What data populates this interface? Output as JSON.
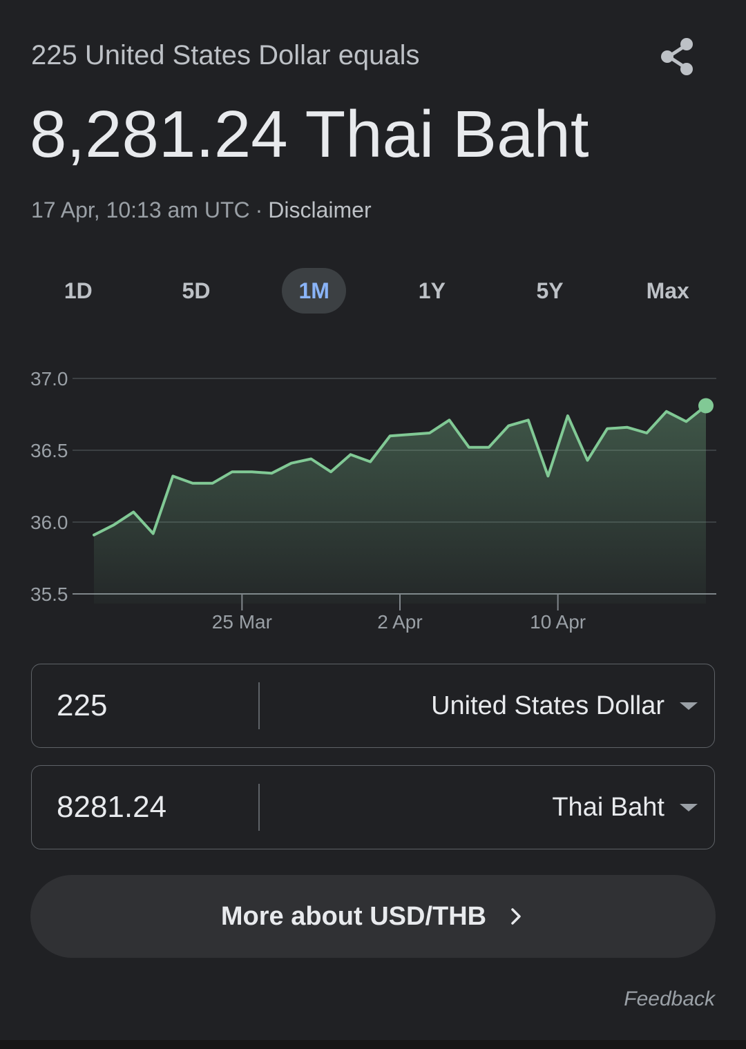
{
  "header": {
    "subtitle": "225 United States Dollar equals",
    "headline": "8,281.24 Thai Baht",
    "timestamp": "17 Apr, 10:13 am UTC",
    "separator": "·",
    "disclaimer": "Disclaimer",
    "share_icon": "share-icon"
  },
  "tabs": [
    {
      "label": "1D",
      "active": false
    },
    {
      "label": "5D",
      "active": false
    },
    {
      "label": "1M",
      "active": true
    },
    {
      "label": "1Y",
      "active": false
    },
    {
      "label": "5Y",
      "active": false
    },
    {
      "label": "Max",
      "active": false
    }
  ],
  "chart_data": {
    "type": "area",
    "title": "",
    "xlabel": "",
    "ylabel": "",
    "ylim": [
      35.5,
      37.0
    ],
    "y_ticks": [
      "37.0",
      "36.5",
      "36.0",
      "35.5"
    ],
    "x_ticks": [
      {
        "label": "25 Mar",
        "index": 7.5
      },
      {
        "label": "2 Apr",
        "index": 15.5
      },
      {
        "label": "10 Apr",
        "index": 23.5
      }
    ],
    "grid": true,
    "line_color": "#81c995",
    "values": [
      35.91,
      35.98,
      36.07,
      35.92,
      36.32,
      36.27,
      36.27,
      36.35,
      36.35,
      36.34,
      36.41,
      36.44,
      36.35,
      36.47,
      36.42,
      36.6,
      36.61,
      36.62,
      36.71,
      36.52,
      36.52,
      36.67,
      36.71,
      36.32,
      36.74,
      36.43,
      36.65,
      36.66,
      36.62,
      36.77,
      36.7,
      36.81
    ]
  },
  "converter": {
    "from": {
      "amount": "225",
      "currency": "United States Dollar"
    },
    "to": {
      "amount": "8281.24",
      "currency": "Thai Baht"
    }
  },
  "more_button": "More about USD/THB",
  "feedback": "Feedback"
}
